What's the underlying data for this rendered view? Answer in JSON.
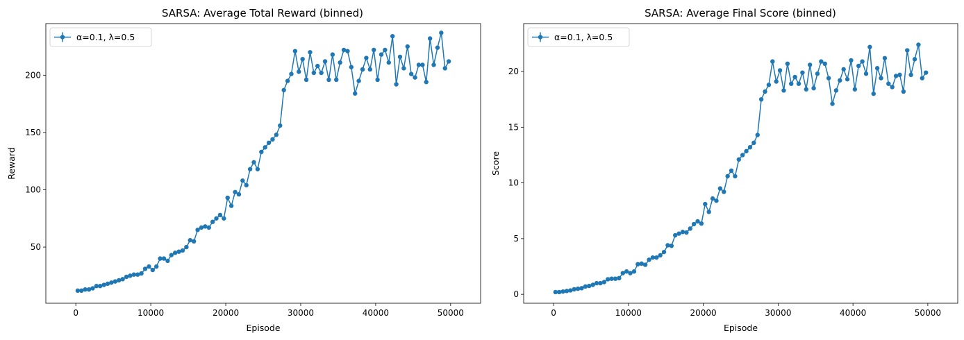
{
  "chart_data": [
    {
      "type": "line",
      "title": "SARSA: Average Total Reward (binned)",
      "xlabel": "Episode",
      "ylabel": "Reward",
      "xlim": [
        -4000,
        54000
      ],
      "ylim": [
        1,
        245
      ],
      "xticks": [
        0,
        10000,
        20000,
        30000,
        40000,
        50000
      ],
      "yticks": [
        50,
        100,
        150,
        200
      ],
      "legend_position": "upper-left",
      "color": "#1f77b4",
      "series": [
        {
          "name": "α=0.1, λ=0.5",
          "x": [
            250,
            750,
            1250,
            1750,
            2250,
            2750,
            3250,
            3750,
            4250,
            4750,
            5250,
            5750,
            6250,
            6750,
            7250,
            7750,
            8250,
            8750,
            9250,
            9750,
            10250,
            10750,
            11250,
            11750,
            12250,
            12750,
            13250,
            13750,
            14250,
            14750,
            15250,
            15750,
            16250,
            16750,
            17250,
            17750,
            18250,
            18750,
            19250,
            19750,
            20250,
            20750,
            21250,
            21750,
            22250,
            22750,
            23250,
            23750,
            24250,
            24750,
            25250,
            25750,
            26250,
            26750,
            27250,
            27750,
            28250,
            28750,
            29250,
            29750,
            30250,
            30750,
            31250,
            31750,
            32250,
            32750,
            33250,
            33750,
            34250,
            34750,
            35250,
            35750,
            36250,
            36750,
            37250,
            37750,
            38250,
            38750,
            39250,
            39750,
            40250,
            40750,
            41250,
            41750,
            42250,
            42750,
            43250,
            43750,
            44250,
            44750,
            45250,
            45750,
            46250,
            46750,
            47250,
            47750,
            48250,
            48750,
            49250,
            49750
          ],
          "y": [
            12,
            12,
            13,
            13,
            14,
            16,
            16,
            17,
            18,
            19,
            20,
            21,
            22,
            24,
            25,
            26,
            26,
            27,
            31,
            33,
            30,
            33,
            40,
            40,
            38,
            43,
            45,
            46,
            47,
            50,
            56,
            55,
            65,
            67,
            68,
            67,
            72,
            75,
            78,
            75,
            93,
            86,
            98,
            96,
            108,
            104,
            118,
            124,
            118,
            133,
            137,
            141,
            144,
            148,
            156,
            187,
            195,
            201,
            221,
            203,
            214,
            196,
            220,
            202,
            208,
            202,
            212,
            196,
            218,
            196,
            211,
            222,
            221,
            207,
            184,
            195,
            205,
            215,
            205,
            222,
            196,
            218,
            222,
            211,
            234,
            192,
            216,
            206,
            225,
            201,
            198,
            209,
            209,
            194,
            232,
            209,
            224,
            237,
            206,
            212
          ]
        }
      ]
    },
    {
      "type": "line",
      "title": "SARSA: Average Final Score (binned)",
      "xlabel": "Episode",
      "ylabel": "Score",
      "xlim": [
        -4000,
        54000
      ],
      "ylim": [
        -0.8,
        24.3
      ],
      "xticks": [
        0,
        10000,
        20000,
        30000,
        40000,
        50000
      ],
      "yticks": [
        0,
        5,
        10,
        15,
        20
      ],
      "legend_position": "upper-left",
      "color": "#1f77b4",
      "series": [
        {
          "name": "α=0.1, λ=0.5",
          "x": [
            250,
            750,
            1250,
            1750,
            2250,
            2750,
            3250,
            3750,
            4250,
            4750,
            5250,
            5750,
            6250,
            6750,
            7250,
            7750,
            8250,
            8750,
            9250,
            9750,
            10250,
            10750,
            11250,
            11750,
            12250,
            12750,
            13250,
            13750,
            14250,
            14750,
            15250,
            15750,
            16250,
            16750,
            17250,
            17750,
            18250,
            18750,
            19250,
            19750,
            20250,
            20750,
            21250,
            21750,
            22250,
            22750,
            23250,
            23750,
            24250,
            24750,
            25250,
            25750,
            26250,
            26750,
            27250,
            27750,
            28250,
            28750,
            29250,
            29750,
            30250,
            30750,
            31250,
            31750,
            32250,
            32750,
            33250,
            33750,
            34250,
            34750,
            35250,
            35750,
            36250,
            36750,
            37250,
            37750,
            38250,
            38750,
            39250,
            39750,
            40250,
            40750,
            41250,
            41750,
            42250,
            42750,
            43250,
            43750,
            44250,
            44750,
            45250,
            45750,
            46250,
            46750,
            47250,
            47750,
            48250,
            48750,
            49250,
            49750
          ],
          "y": [
            0.2,
            0.2,
            0.25,
            0.3,
            0.35,
            0.45,
            0.5,
            0.55,
            0.7,
            0.75,
            0.85,
            1.0,
            1.0,
            1.1,
            1.35,
            1.4,
            1.4,
            1.45,
            1.9,
            2.05,
            1.9,
            2.05,
            2.7,
            2.75,
            2.65,
            3.1,
            3.3,
            3.3,
            3.5,
            3.8,
            4.4,
            4.35,
            5.3,
            5.45,
            5.6,
            5.55,
            5.9,
            6.3,
            6.55,
            6.35,
            8.1,
            7.4,
            8.6,
            8.4,
            9.5,
            9.2,
            10.6,
            11.1,
            10.6,
            12.1,
            12.5,
            12.85,
            13.2,
            13.6,
            14.3,
            17.5,
            18.2,
            18.8,
            20.9,
            19.1,
            20.1,
            18.3,
            20.7,
            18.9,
            19.5,
            18.9,
            19.9,
            18.4,
            20.6,
            18.5,
            19.8,
            20.9,
            20.7,
            19.4,
            17.1,
            18.3,
            19.2,
            20.2,
            19.3,
            21.0,
            18.4,
            20.5,
            20.9,
            19.8,
            22.2,
            18.0,
            20.3,
            19.4,
            21.2,
            18.9,
            18.6,
            19.6,
            19.7,
            18.2,
            21.9,
            19.7,
            21.1,
            22.4,
            19.4,
            19.9
          ]
        }
      ]
    }
  ]
}
